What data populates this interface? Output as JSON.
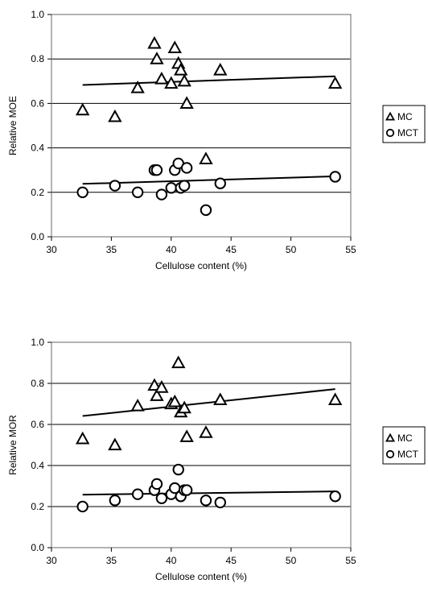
{
  "chart_data": [
    {
      "type": "scatter",
      "xlabel": "Cellulose content (%)",
      "ylabel": "Relative MOE",
      "xlim": [
        30,
        55
      ],
      "ylim": [
        0,
        1
      ],
      "x_ticks": [
        "30",
        "35",
        "40",
        "45",
        "50",
        "55"
      ],
      "y_ticks": [
        "0.0",
        "0.2",
        "0.4",
        "0.6",
        "0.8",
        "1.0"
      ],
      "grid": "horizontal",
      "legend": "right",
      "series": [
        {
          "name": "MC",
          "marker": "triangle",
          "points": [
            [
              32.6,
              0.57
            ],
            [
              35.3,
              0.54
            ],
            [
              37.2,
              0.67
            ],
            [
              38.6,
              0.87
            ],
            [
              38.8,
              0.8
            ],
            [
              39.2,
              0.71
            ],
            [
              40.0,
              0.69
            ],
            [
              40.3,
              0.85
            ],
            [
              40.6,
              0.78
            ],
            [
              40.8,
              0.75
            ],
            [
              41.1,
              0.7
            ],
            [
              41.3,
              0.6
            ],
            [
              42.9,
              0.35
            ],
            [
              44.1,
              0.75
            ],
            [
              53.7,
              0.69
            ]
          ],
          "trend": [
            [
              32.6,
              0.683
            ],
            [
              53.7,
              0.722
            ]
          ]
        },
        {
          "name": "MCT",
          "marker": "circle",
          "points": [
            [
              32.6,
              0.2
            ],
            [
              35.3,
              0.23
            ],
            [
              37.2,
              0.2
            ],
            [
              38.6,
              0.3
            ],
            [
              38.8,
              0.3
            ],
            [
              39.2,
              0.19
            ],
            [
              40.0,
              0.22
            ],
            [
              40.3,
              0.3
            ],
            [
              40.6,
              0.33
            ],
            [
              40.8,
              0.22
            ],
            [
              41.1,
              0.23
            ],
            [
              41.3,
              0.31
            ],
            [
              42.9,
              0.12
            ],
            [
              44.1,
              0.24
            ],
            [
              53.7,
              0.27
            ]
          ],
          "trend": [
            [
              32.6,
              0.238
            ],
            [
              53.7,
              0.272
            ]
          ]
        }
      ]
    },
    {
      "type": "scatter",
      "xlabel": "Cellulose content (%)",
      "ylabel": "Relative MOR",
      "xlim": [
        30,
        55
      ],
      "ylim": [
        0,
        1
      ],
      "x_ticks": [
        "30",
        "35",
        "40",
        "45",
        "50",
        "55"
      ],
      "y_ticks": [
        "0.0",
        "0.2",
        "0.4",
        "0.6",
        "0.8",
        "1.0"
      ],
      "grid": "horizontal",
      "legend": "right",
      "series": [
        {
          "name": "MC",
          "marker": "triangle",
          "points": [
            [
              32.6,
              0.53
            ],
            [
              35.3,
              0.5
            ],
            [
              37.2,
              0.69
            ],
            [
              38.6,
              0.79
            ],
            [
              38.8,
              0.74
            ],
            [
              39.2,
              0.78
            ],
            [
              40.0,
              0.7
            ],
            [
              40.3,
              0.71
            ],
            [
              40.6,
              0.9
            ],
            [
              40.8,
              0.66
            ],
            [
              41.1,
              0.68
            ],
            [
              41.3,
              0.54
            ],
            [
              42.9,
              0.56
            ],
            [
              44.1,
              0.72
            ],
            [
              53.7,
              0.72
            ]
          ],
          "trend": [
            [
              32.6,
              0.641
            ],
            [
              53.7,
              0.772
            ]
          ]
        },
        {
          "name": "MCT",
          "marker": "circle",
          "points": [
            [
              32.6,
              0.2
            ],
            [
              35.3,
              0.23
            ],
            [
              37.2,
              0.26
            ],
            [
              38.6,
              0.28
            ],
            [
              38.8,
              0.31
            ],
            [
              39.2,
              0.24
            ],
            [
              40.0,
              0.26
            ],
            [
              40.3,
              0.29
            ],
            [
              40.6,
              0.38
            ],
            [
              40.8,
              0.25
            ],
            [
              41.1,
              0.28
            ],
            [
              41.3,
              0.28
            ],
            [
              42.9,
              0.23
            ],
            [
              44.1,
              0.22
            ],
            [
              53.7,
              0.25
            ]
          ],
          "trend": [
            [
              32.6,
              0.258
            ],
            [
              53.7,
              0.274
            ]
          ]
        }
      ]
    }
  ]
}
